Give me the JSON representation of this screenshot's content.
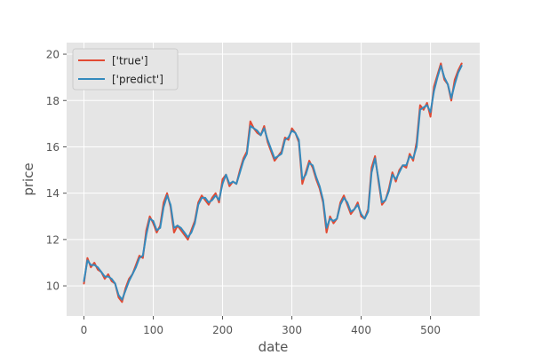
{
  "chart_data": {
    "type": "line",
    "title": "",
    "xlabel": "date",
    "ylabel": "price",
    "xlim": [
      -25,
      571
    ],
    "ylim": [
      8.7,
      20.5
    ],
    "xticks": [
      0,
      100,
      200,
      300,
      400,
      500
    ],
    "yticks": [
      10,
      12,
      14,
      16,
      18,
      20
    ],
    "xtick_labels": [
      "0",
      "100",
      "200",
      "300",
      "400",
      "500"
    ],
    "ytick_labels": [
      "10",
      "12",
      "14",
      "16",
      "18",
      "20"
    ],
    "grid": true,
    "legend_position": "top-left",
    "background": "#e5e5e5",
    "series": [
      {
        "name": "['true']",
        "color": "#e24a33",
        "x": [
          0,
          5,
          10,
          15,
          20,
          25,
          30,
          35,
          40,
          45,
          50,
          55,
          60,
          65,
          70,
          75,
          80,
          85,
          90,
          95,
          100,
          105,
          110,
          115,
          120,
          125,
          130,
          135,
          140,
          145,
          150,
          155,
          160,
          165,
          170,
          175,
          180,
          185,
          190,
          195,
          200,
          205,
          210,
          215,
          220,
          225,
          230,
          235,
          240,
          245,
          250,
          255,
          260,
          265,
          270,
          275,
          280,
          285,
          290,
          295,
          300,
          305,
          310,
          315,
          320,
          325,
          330,
          335,
          340,
          345,
          350,
          355,
          360,
          365,
          370,
          375,
          380,
          385,
          390,
          395,
          400,
          405,
          410,
          415,
          420,
          425,
          430,
          435,
          440,
          445,
          450,
          455,
          460,
          465,
          470,
          475,
          480,
          485,
          490,
          495,
          500,
          505,
          510,
          515,
          520,
          525,
          530,
          535,
          540,
          545
        ],
        "values": [
          10.1,
          11.2,
          10.8,
          11.0,
          10.7,
          10.6,
          10.3,
          10.5,
          10.2,
          10.1,
          9.5,
          9.3,
          9.9,
          10.3,
          10.5,
          10.9,
          11.3,
          11.2,
          12.4,
          13.0,
          12.7,
          12.3,
          12.6,
          13.6,
          14.0,
          13.4,
          12.3,
          12.6,
          12.4,
          12.2,
          12.0,
          12.4,
          12.8,
          13.6,
          13.9,
          13.7,
          13.5,
          13.8,
          14.0,
          13.6,
          14.6,
          14.8,
          14.3,
          14.5,
          14.4,
          15.0,
          15.5,
          15.8,
          17.1,
          16.8,
          16.6,
          16.5,
          16.9,
          16.2,
          15.8,
          15.4,
          15.6,
          15.8,
          16.4,
          16.3,
          16.8,
          16.6,
          16.2,
          14.4,
          14.9,
          15.4,
          15.1,
          14.6,
          14.2,
          13.6,
          12.3,
          13.0,
          12.7,
          12.9,
          13.6,
          13.9,
          13.5,
          13.1,
          13.3,
          13.6,
          13.0,
          12.9,
          13.3,
          15.1,
          15.6,
          14.5,
          13.5,
          13.7,
          14.2,
          14.9,
          14.5,
          15.0,
          15.2,
          15.1,
          15.7,
          15.4,
          16.2,
          17.8,
          17.6,
          17.9,
          17.3,
          18.6,
          19.1,
          19.6,
          18.9,
          18.7,
          18.0,
          18.9,
          19.3,
          19.6
        ]
      },
      {
        "name": "['predict']",
        "color": "#348abd",
        "x": [
          0,
          5,
          10,
          15,
          20,
          25,
          30,
          35,
          40,
          45,
          50,
          55,
          60,
          65,
          70,
          75,
          80,
          85,
          90,
          95,
          100,
          105,
          110,
          115,
          120,
          125,
          130,
          135,
          140,
          145,
          150,
          155,
          160,
          165,
          170,
          175,
          180,
          185,
          190,
          195,
          200,
          205,
          210,
          215,
          220,
          225,
          230,
          235,
          240,
          245,
          250,
          255,
          260,
          265,
          270,
          275,
          280,
          285,
          290,
          295,
          300,
          305,
          310,
          315,
          320,
          325,
          330,
          335,
          340,
          345,
          350,
          355,
          360,
          365,
          370,
          375,
          380,
          385,
          390,
          395,
          400,
          405,
          410,
          415,
          420,
          425,
          430,
          435,
          440,
          445,
          450,
          455,
          460,
          465,
          470,
          475,
          480,
          485,
          490,
          495,
          500,
          505,
          510,
          515,
          520,
          525,
          530,
          535,
          540,
          545
        ],
        "values": [
          10.2,
          11.1,
          10.9,
          10.9,
          10.8,
          10.6,
          10.4,
          10.4,
          10.3,
          10.1,
          9.6,
          9.4,
          9.8,
          10.2,
          10.5,
          10.8,
          11.2,
          11.3,
          12.2,
          12.9,
          12.8,
          12.4,
          12.5,
          13.4,
          13.9,
          13.5,
          12.5,
          12.6,
          12.5,
          12.3,
          12.1,
          12.3,
          12.7,
          13.5,
          13.8,
          13.8,
          13.6,
          13.7,
          13.9,
          13.7,
          14.4,
          14.8,
          14.4,
          14.5,
          14.4,
          14.9,
          15.4,
          15.7,
          16.9,
          16.8,
          16.7,
          16.5,
          16.8,
          16.3,
          15.9,
          15.5,
          15.6,
          15.7,
          16.3,
          16.4,
          16.7,
          16.6,
          16.3,
          14.6,
          14.8,
          15.3,
          15.2,
          14.7,
          14.3,
          13.7,
          12.5,
          12.9,
          12.8,
          12.9,
          13.5,
          13.8,
          13.6,
          13.2,
          13.3,
          13.5,
          13.1,
          12.9,
          13.2,
          14.9,
          15.5,
          14.6,
          13.6,
          13.7,
          14.1,
          14.8,
          14.6,
          14.9,
          15.2,
          15.2,
          15.6,
          15.5,
          16.0,
          17.6,
          17.7,
          17.8,
          17.5,
          18.4,
          19.0,
          19.5,
          19.0,
          18.7,
          18.1,
          18.7,
          19.2,
          19.5
        ]
      }
    ]
  }
}
